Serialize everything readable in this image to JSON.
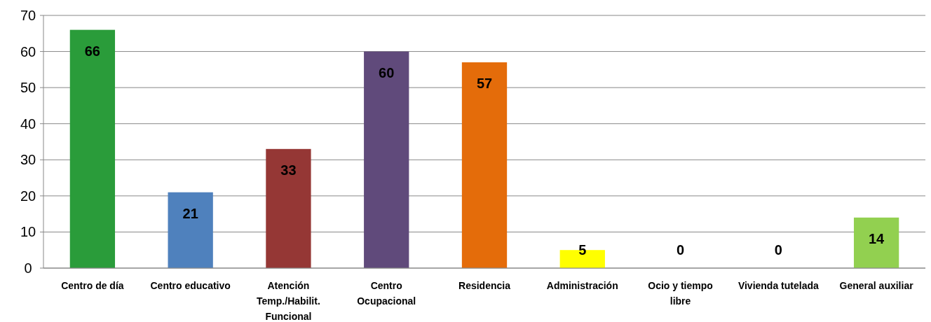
{
  "chart_data": {
    "type": "bar",
    "categories": [
      "Centro de día",
      "Centro educativo",
      "Atención Temp./Habilit. Funcional",
      "Centro Ocupacional",
      "Residencia",
      "Administración",
      "Ocio y tiempo libre",
      "Vivienda tutelada",
      "General auxiliar"
    ],
    "values": [
      66,
      21,
      33,
      60,
      57,
      5,
      0,
      0,
      14
    ],
    "colors": [
      "#2a9c3a",
      "#4f81bd",
      "#953735",
      "#604a7b",
      "#e46c0a",
      "#ffff00",
      "#4bacc6",
      "#8064a2",
      "#92d050"
    ],
    "ylim": [
      0,
      70
    ],
    "yticks": [
      0,
      10,
      20,
      30,
      40,
      50,
      60,
      70
    ],
    "grid": "y",
    "data_labels": true
  }
}
